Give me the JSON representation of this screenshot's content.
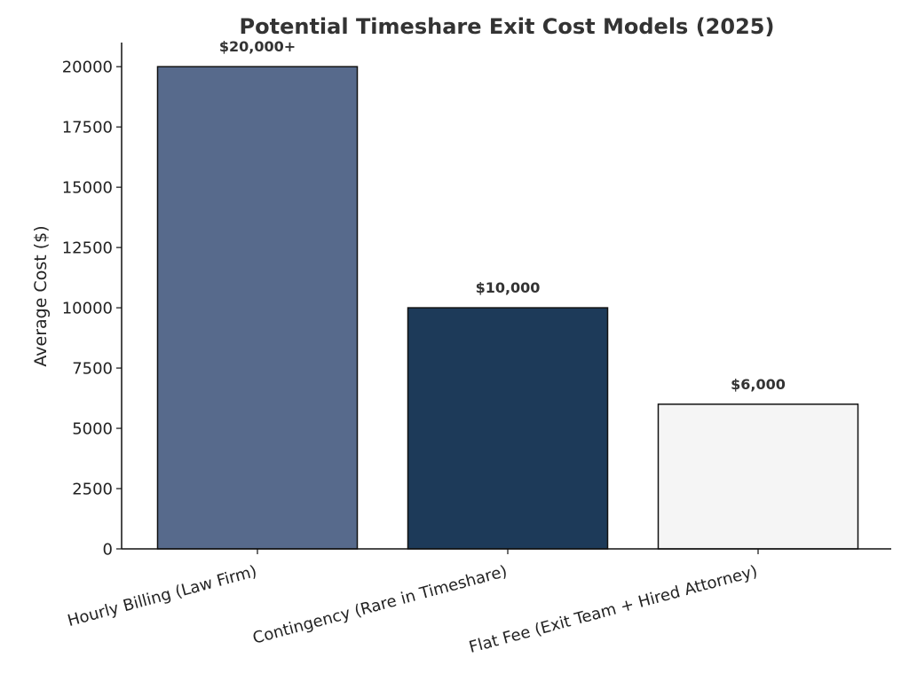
{
  "chart_data": {
    "type": "bar",
    "title": "Potential Timeshare Exit Cost Models (2025)",
    "xlabel": "",
    "ylabel": "Average Cost ($)",
    "ylim": [
      0,
      21000
    ],
    "yticks": [
      0,
      2500,
      5000,
      7500,
      10000,
      12500,
      15000,
      17500,
      20000
    ],
    "ytick_labels": [
      "0",
      "2500",
      "5000",
      "7500",
      "10000",
      "12500",
      "15000",
      "17500",
      "20000"
    ],
    "grid": false,
    "categories": [
      "Hourly Billing (Law Firm)",
      "Contingency (Rare in Timeshare)",
      "Flat Fee (Exit Team + Hired Attorney)"
    ],
    "values": [
      20000,
      10000,
      6000
    ],
    "data_labels": [
      "$20,000+",
      "$10,000",
      "$6,000"
    ],
    "colors": [
      "#576a8c",
      "#1d3a59",
      "#f5f5f5"
    ],
    "edge_color": "#111111"
  }
}
